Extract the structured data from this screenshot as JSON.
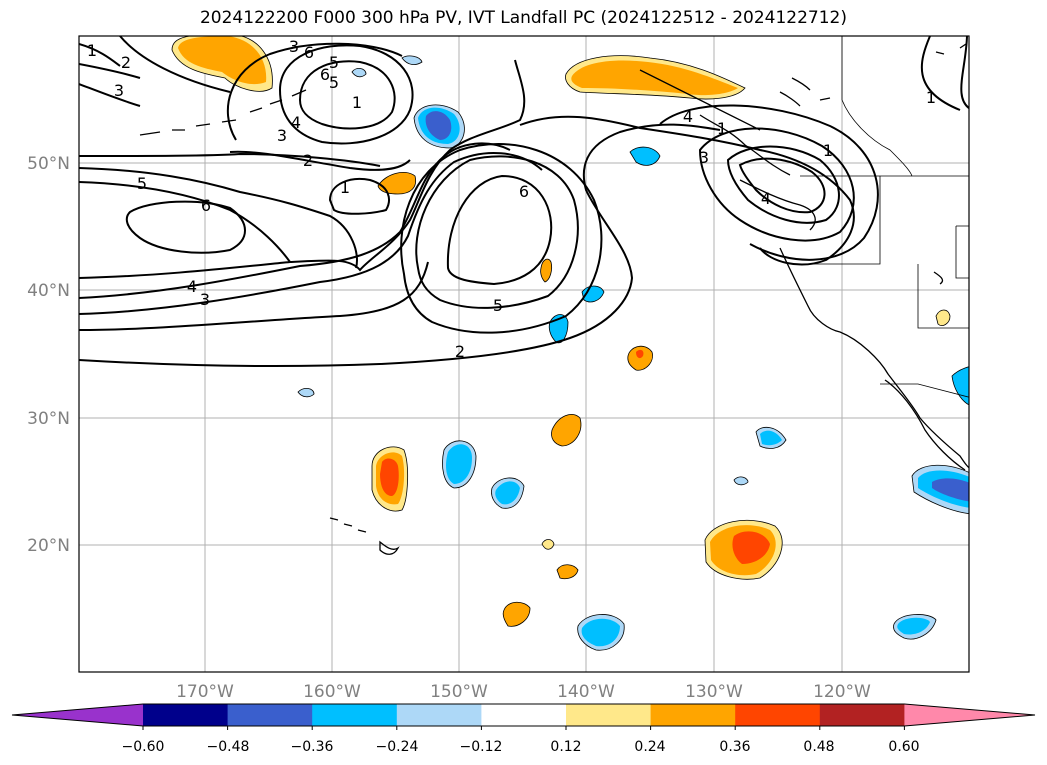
{
  "title": "2024122200 F000 300 hPa PV, IVT Landfall PC (2024122512 - 2024122712)",
  "map": {
    "lon_labels": [
      "170°W",
      "160°W",
      "150°W",
      "140°W",
      "130°W",
      "120°W"
    ],
    "lat_labels": [
      "50°N",
      "40°N",
      "30°N",
      "20°N"
    ],
    "pv_contour_labels": [
      "1",
      "2",
      "3",
      "4",
      "5",
      "6",
      "3",
      "5",
      "6",
      "1",
      "2",
      "3",
      "4",
      "5",
      "6",
      "1",
      "2",
      "5",
      "6",
      "1",
      "3",
      "4",
      "1",
      "3",
      "4",
      "1"
    ]
  },
  "colorbar": {
    "tick_labels": [
      "−0.60",
      "−0.48",
      "−0.36",
      "−0.24",
      "−0.12",
      "0.12",
      "0.24",
      "0.36",
      "0.48",
      "0.60"
    ],
    "colors": [
      "#9932cc",
      "#00008b",
      "#3a5fcd",
      "#00bfff",
      "#add8f7",
      "#ffffff",
      "#ffe88a",
      "#ffa500",
      "#ff4500",
      "#b22222",
      "#ff88aa"
    ]
  },
  "colors": {
    "pos1": "#ffe88a",
    "pos2": "#ffa500",
    "pos3": "#ff4500",
    "neg1": "#add8f7",
    "neg2": "#00bfff",
    "neg3": "#3a5fcd"
  }
}
